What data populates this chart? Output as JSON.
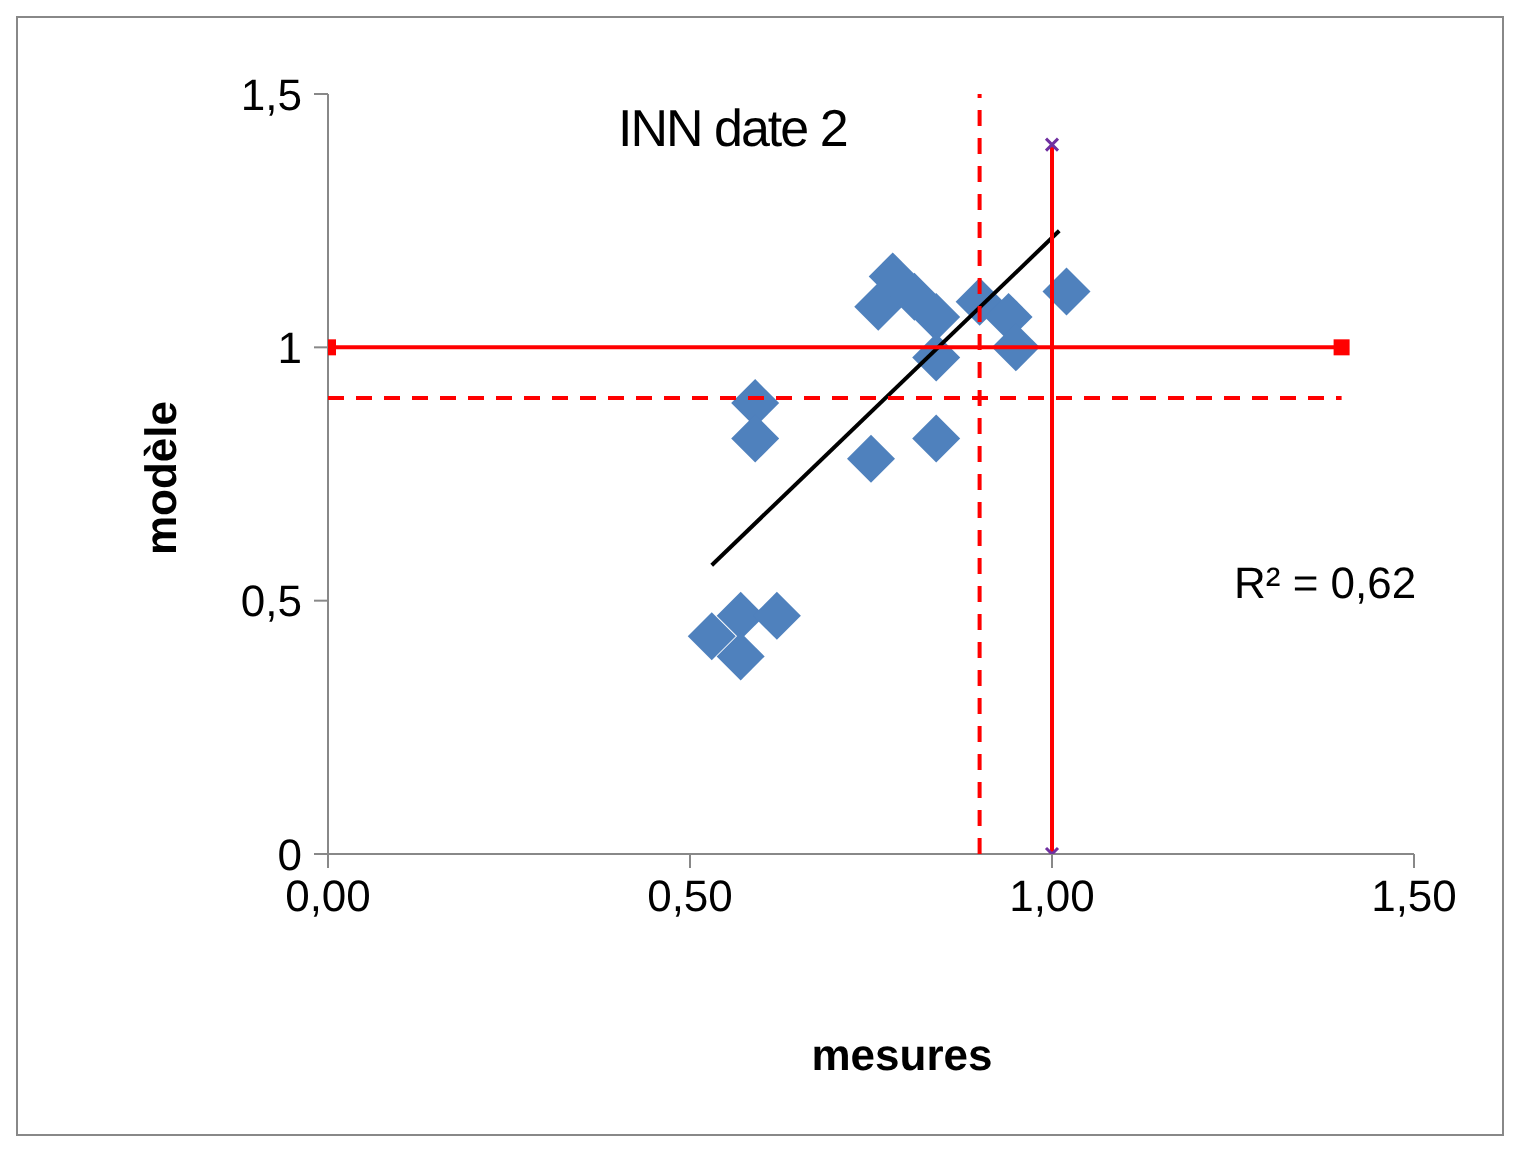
{
  "chart_data": {
    "type": "scatter",
    "title": "INN date 2",
    "xlabel": "mesures",
    "ylabel": "modèle",
    "xlim": [
      0,
      1.5
    ],
    "xticks": [
      {
        "value": 0,
        "label": "0,00"
      },
      {
        "value": 0.5,
        "label": "0,50"
      },
      {
        "value": 1,
        "label": "1,00"
      },
      {
        "value": 1.5,
        "label": "1,50"
      }
    ],
    "ylim": [
      0,
      1.5
    ],
    "yticks": [
      0,
      {
        "value": 0.5,
        "label": "0,5"
      },
      1,
      {
        "value": 1.5,
        "label": "1,5"
      }
    ],
    "grid": false,
    "series": [
      {
        "type": "scatter",
        "marker": "diamond",
        "color": "#4f81bd",
        "x": [
          0.78,
          0.76,
          0.81,
          0.84,
          0.84,
          0.9,
          0.94,
          0.95,
          1.02,
          0.59,
          0.59,
          0.75,
          0.84,
          0.53,
          0.57,
          0.62,
          0.57
        ],
        "values": [
          1.14,
          1.08,
          1.1,
          1.06,
          0.98,
          1.09,
          1.06,
          1.0,
          1.11,
          0.89,
          0.82,
          0.78,
          0.82,
          0.43,
          0.47,
          0.47,
          0.39
        ]
      },
      {
        "type": "line",
        "marker": "none",
        "color": "#000000",
        "x": [
          0.53,
          1.01
        ],
        "values": [
          0.57,
          1.23
        ]
      },
      {
        "type": "line",
        "marker": "square",
        "color": "#ff0000",
        "x": [
          0,
          1.4
        ],
        "values": [
          1,
          1
        ]
      },
      {
        "type": "line",
        "marker": "cross",
        "color": "#ff0000",
        "x": [
          1,
          1
        ],
        "values": [
          0,
          1.4
        ]
      },
      {
        "type": "line",
        "marker": "none",
        "line_style": "dashed",
        "color": "#ff0000",
        "x": [
          0,
          1.4
        ],
        "values": [
          0.9,
          0.9
        ]
      },
      {
        "type": "line",
        "marker": "none",
        "line_style": "dashed",
        "color": "#ff0000",
        "x": [
          0.9,
          0.9
        ],
        "values": [
          0,
          1.5
        ]
      }
    ],
    "annotations": [
      "R² = 0,62"
    ]
  }
}
